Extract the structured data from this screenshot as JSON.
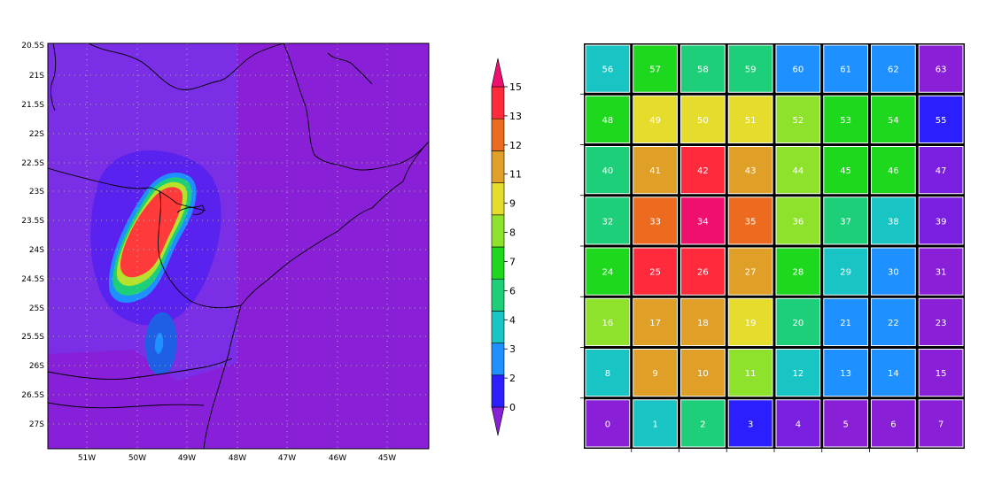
{
  "map": {
    "lat_ticks": [
      "20.5S",
      "21S",
      "21.5S",
      "22S",
      "22.5S",
      "23S",
      "23.5S",
      "24S",
      "24.5S",
      "25S",
      "25.5S",
      "26S",
      "26.5S",
      "27S"
    ],
    "lon_ticks": [
      "51W",
      "50W",
      "49W",
      "48W",
      "47W",
      "46W",
      "45W"
    ],
    "colors": {
      "background": "#7a2ee6",
      "land_east": "#8a1fd8",
      "c1": "#5a22ee",
      "c3": "#1e90ff",
      "c6": "#1ecf7a",
      "c9": "#b6e22b",
      "c12": "#ff3a3a"
    }
  },
  "colorbar": {
    "labels": [
      "15",
      "13",
      "12",
      "11",
      "9",
      "8",
      "7",
      "6",
      "4",
      "3",
      "2",
      "0"
    ],
    "colors": [
      "#8a1fd8",
      "#2b1fff",
      "#1e90ff",
      "#18c4c4",
      "#1ecf7a",
      "#1ed81e",
      "#8fe22b",
      "#e6dc2b",
      "#e0a028",
      "#ec6b1e",
      "#ff2a3c",
      "#ee0f6f"
    ]
  },
  "grid": {
    "cells": [
      {
        "n": "56",
        "c": "#18c4c4"
      },
      {
        "n": "57",
        "c": "#1ed81e"
      },
      {
        "n": "58",
        "c": "#1ecf7a"
      },
      {
        "n": "59",
        "c": "#1ecf7a"
      },
      {
        "n": "60",
        "c": "#1e90ff"
      },
      {
        "n": "61",
        "c": "#1e90ff"
      },
      {
        "n": "62",
        "c": "#1e90ff"
      },
      {
        "n": "63",
        "c": "#8a1fd8"
      },
      {
        "n": "48",
        "c": "#1ed81e"
      },
      {
        "n": "49",
        "c": "#e6dc2b"
      },
      {
        "n": "50",
        "c": "#e6dc2b"
      },
      {
        "n": "51",
        "c": "#e6dc2b"
      },
      {
        "n": "52",
        "c": "#8fe22b"
      },
      {
        "n": "53",
        "c": "#1ed81e"
      },
      {
        "n": "54",
        "c": "#1ed81e"
      },
      {
        "n": "55",
        "c": "#2b1fff"
      },
      {
        "n": "40",
        "c": "#1ecf7a"
      },
      {
        "n": "41",
        "c": "#e0a028"
      },
      {
        "n": "42",
        "c": "#ff2a3c"
      },
      {
        "n": "43",
        "c": "#e0a028"
      },
      {
        "n": "44",
        "c": "#8fe22b"
      },
      {
        "n": "45",
        "c": "#1ed81e"
      },
      {
        "n": "46",
        "c": "#1ed81e"
      },
      {
        "n": "47",
        "c": "#7a1fe0"
      },
      {
        "n": "32",
        "c": "#1ecf7a"
      },
      {
        "n": "33",
        "c": "#ec6b1e"
      },
      {
        "n": "34",
        "c": "#ee0f6f"
      },
      {
        "n": "35",
        "c": "#ec6b1e"
      },
      {
        "n": "36",
        "c": "#8fe22b"
      },
      {
        "n": "37",
        "c": "#1ecf7a"
      },
      {
        "n": "38",
        "c": "#18c4c4"
      },
      {
        "n": "39",
        "c": "#7a1fe0"
      },
      {
        "n": "24",
        "c": "#1ed81e"
      },
      {
        "n": "25",
        "c": "#ff2a3c"
      },
      {
        "n": "26",
        "c": "#ff2a3c"
      },
      {
        "n": "27",
        "c": "#e0a028"
      },
      {
        "n": "28",
        "c": "#1ed81e"
      },
      {
        "n": "29",
        "c": "#18c4c4"
      },
      {
        "n": "30",
        "c": "#1e90ff"
      },
      {
        "n": "31",
        "c": "#8a1fd8"
      },
      {
        "n": "16",
        "c": "#8fe22b"
      },
      {
        "n": "17",
        "c": "#e0a028"
      },
      {
        "n": "18",
        "c": "#e0a028"
      },
      {
        "n": "19",
        "c": "#e6dc2b"
      },
      {
        "n": "20",
        "c": "#1ecf7a"
      },
      {
        "n": "21",
        "c": "#1e90ff"
      },
      {
        "n": "22",
        "c": "#1e90ff"
      },
      {
        "n": "23",
        "c": "#8a1fd8"
      },
      {
        "n": "8",
        "c": "#18c4c4"
      },
      {
        "n": "9",
        "c": "#e0a028"
      },
      {
        "n": "10",
        "c": "#e0a028"
      },
      {
        "n": "11",
        "c": "#8fe22b"
      },
      {
        "n": "12",
        "c": "#18c4c4"
      },
      {
        "n": "13",
        "c": "#1e90ff"
      },
      {
        "n": "14",
        "c": "#1e90ff"
      },
      {
        "n": "15",
        "c": "#8a1fd8"
      },
      {
        "n": "0",
        "c": "#8a1fd8"
      },
      {
        "n": "1",
        "c": "#18c4c4"
      },
      {
        "n": "2",
        "c": "#1ecf7a"
      },
      {
        "n": "3",
        "c": "#2b1fff"
      },
      {
        "n": "4",
        "c": "#7a1fe0"
      },
      {
        "n": "5",
        "c": "#8a1fd8"
      },
      {
        "n": "6",
        "c": "#8a1fd8"
      },
      {
        "n": "7",
        "c": "#8a1fd8"
      }
    ]
  }
}
